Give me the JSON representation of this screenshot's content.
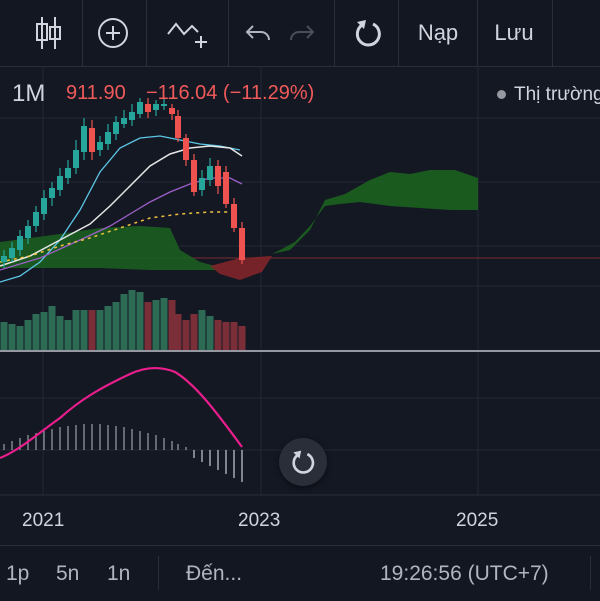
{
  "toolbar": {
    "items": [
      {
        "name": "candles-chart-type-icon"
      },
      {
        "name": "add-indicator-icon"
      },
      {
        "name": "indicators-icon"
      },
      {
        "name": "undo-icon"
      },
      {
        "name": "redo-icon"
      },
      {
        "name": "reload-icon"
      }
    ],
    "load_label": "Nạp",
    "save_label": "Lưu"
  },
  "header": {
    "interval": "1M",
    "price": "911.90",
    "change": "−116.04 (−11.29%)",
    "market_status": "Thị trường"
  },
  "xaxis": {
    "labels": [
      "2021",
      "2023",
      "2025"
    ]
  },
  "bottombar": {
    "ranges": [
      "1p",
      "5n",
      "1n"
    ],
    "goto": "Đến...",
    "time": "19:26:56 (UTC+7)"
  },
  "colors": {
    "background": "#141823",
    "up": "#26a69a",
    "down": "#ef5350",
    "ichimoku_green": "#1b5e20",
    "ichimoku_red": "#7f2529",
    "macd_line": "#e91e8c",
    "price_line": "#ef5350"
  }
}
